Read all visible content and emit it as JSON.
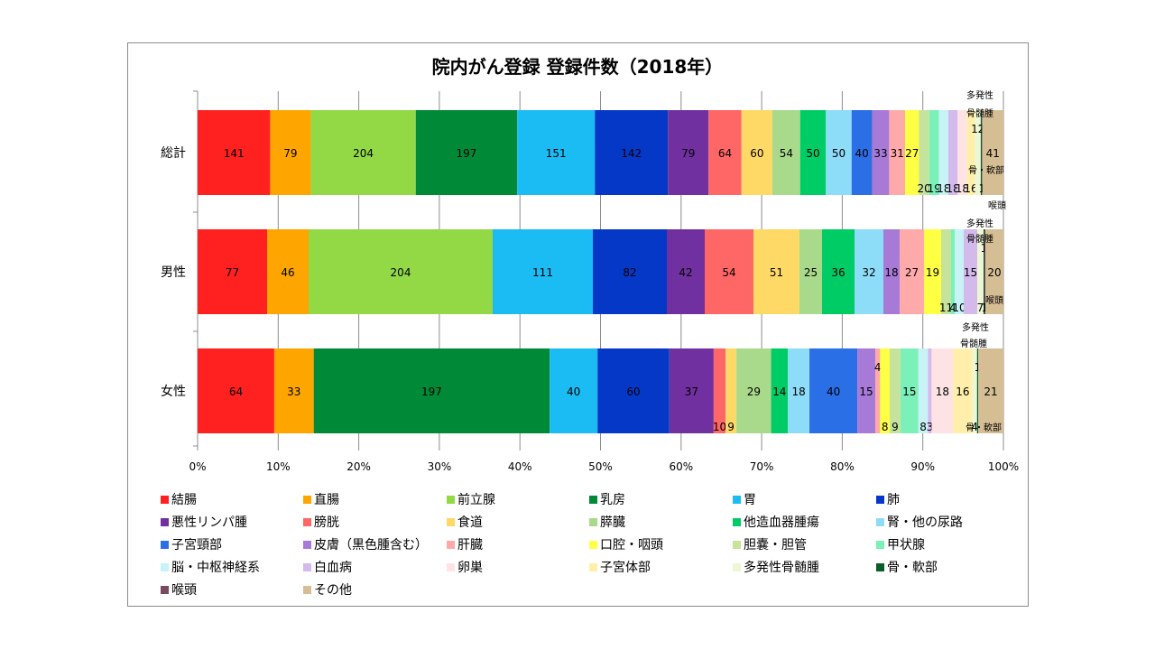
{
  "chart_data": {
    "type": "bar",
    "stacked": "percent",
    "orientation": "horizontal",
    "title": "院内がん登録  登録件数（2018年）",
    "categories": [
      "総計",
      "男性",
      "女性"
    ],
    "xlim": [
      0,
      100
    ],
    "x_ticks": [
      "0%",
      "10%",
      "20%",
      "30%",
      "40%",
      "50%",
      "60%",
      "70%",
      "80%",
      "90%",
      "100%"
    ],
    "grid": true,
    "legend_position": "bottom",
    "series": [
      {
        "name": "結腸",
        "color": "#ff2020",
        "values": [
          141,
          77,
          64
        ],
        "labels": [
          "141",
          "77",
          "64"
        ]
      },
      {
        "name": "直腸",
        "color": "#ffa500",
        "values": [
          79,
          46,
          33
        ],
        "labels": [
          "79",
          "46",
          "33"
        ]
      },
      {
        "name": "前立腺",
        "color": "#92d945",
        "values": [
          204,
          204,
          0
        ],
        "labels": [
          "204",
          "204",
          ""
        ]
      },
      {
        "name": "乳房",
        "color": "#008a38",
        "values": [
          197,
          0,
          197
        ],
        "labels": [
          "197",
          "",
          "197"
        ]
      },
      {
        "name": "胃",
        "color": "#1bbcf4",
        "values": [
          151,
          111,
          40
        ],
        "labels": [
          "151",
          "111",
          "40"
        ]
      },
      {
        "name": "肺",
        "color": "#0638c7",
        "values": [
          142,
          82,
          60
        ],
        "labels": [
          "142",
          "82",
          "60"
        ]
      },
      {
        "name": "悪性リンパ腫",
        "color": "#7030a0",
        "values": [
          79,
          42,
          37
        ],
        "labels": [
          "79",
          "42",
          "37"
        ]
      },
      {
        "name": "膀胱",
        "color": "#ff6666",
        "values": [
          64,
          54,
          10
        ],
        "labels": [
          "64",
          "54",
          "10"
        ]
      },
      {
        "name": "食道",
        "color": "#ffd966",
        "values": [
          60,
          51,
          9
        ],
        "labels": [
          "60",
          "51",
          "9"
        ]
      },
      {
        "name": "膵臓",
        "color": "#a9d98a",
        "values": [
          54,
          25,
          29
        ],
        "labels": [
          "54",
          "25",
          "29"
        ]
      },
      {
        "name": "他造血器腫瘍",
        "color": "#00cc66",
        "values": [
          50,
          36,
          14
        ],
        "labels": [
          "50",
          "36",
          "14"
        ]
      },
      {
        "name": "腎・他の尿路",
        "color": "#8ddcf8",
        "values": [
          50,
          32,
          18
        ],
        "labels": [
          "50",
          "32",
          "18"
        ]
      },
      {
        "name": "子宮頸部",
        "color": "#2b6fe6",
        "values": [
          40,
          0,
          40
        ],
        "labels": [
          "40",
          "",
          "40"
        ]
      },
      {
        "name": "皮膚（黒色腫含む）",
        "color": "#a87ad8",
        "values": [
          33,
          18,
          15
        ],
        "labels": [
          "33",
          "18",
          "15"
        ]
      },
      {
        "name": "肝臓",
        "color": "#ffaaaa",
        "values": [
          31,
          27,
          4
        ],
        "labels": [
          "31",
          "27",
          "4"
        ]
      },
      {
        "name": "口腔・咽頭",
        "color": "#ffff44",
        "values": [
          27,
          19,
          8
        ],
        "labels": [
          "27",
          "19",
          "8"
        ]
      },
      {
        "name": "胆嚢・胆管",
        "color": "#c5e39b",
        "values": [
          20,
          11,
          9
        ],
        "labels": [
          "20",
          "11",
          "9"
        ]
      },
      {
        "name": "甲状腺",
        "color": "#7bf0b8",
        "values": [
          19,
          4,
          15
        ],
        "labels": [
          "19",
          "4",
          "15"
        ]
      },
      {
        "name": "脳・中枢神経系",
        "color": "#c7f3f7",
        "values": [
          18,
          10,
          8
        ],
        "labels": [
          "18",
          "10",
          "8"
        ]
      },
      {
        "name": "白血病",
        "color": "#d3b9ec",
        "values": [
          18,
          15,
          3
        ],
        "labels": [
          "18",
          "15",
          "3"
        ]
      },
      {
        "name": "卵巣",
        "color": "#fde3e3",
        "values": [
          18,
          0,
          18
        ],
        "labels": [
          "18",
          "",
          "18"
        ]
      },
      {
        "name": "子宮体部",
        "color": "#ffefaa",
        "values": [
          16,
          0,
          16
        ],
        "labels": [
          "16",
          "",
          "16"
        ]
      },
      {
        "name": "多発性骨髄腫",
        "color": "#eef7d5",
        "values": [
          11,
          7,
          4
        ],
        "labels": [
          "11",
          "7",
          "4"
        ]
      },
      {
        "name": "骨・軟部",
        "color": "#0b5d2a",
        "values": [
          2,
          1,
          1
        ],
        "labels": [
          "2",
          "1",
          "1"
        ]
      },
      {
        "name": "喉頭",
        "color": "#7a4a60",
        "values": [
          1,
          1,
          0
        ],
        "labels": [
          "1",
          "1",
          ""
        ]
      },
      {
        "name": "その他",
        "color": "#d6be94",
        "values": [
          41,
          20,
          21
        ],
        "labels": [
          "41",
          "20",
          "21"
        ]
      }
    ],
    "annotations": [
      {
        "text": "多発性",
        "row": 0
      },
      {
        "text": "骨髄腫",
        "row": 0
      },
      {
        "text": "骨・軟部",
        "row": 0
      },
      {
        "text": "喉頭",
        "row": 1
      },
      {
        "text": "多発性",
        "row": 1
      },
      {
        "text": "骨髄腫",
        "row": 1
      },
      {
        "text": "喉頭",
        "row": 1
      },
      {
        "text": "多発性",
        "row": 2
      },
      {
        "text": "骨髄腫",
        "row": 2
      },
      {
        "text": "骨・軟部",
        "row": 2
      }
    ]
  }
}
